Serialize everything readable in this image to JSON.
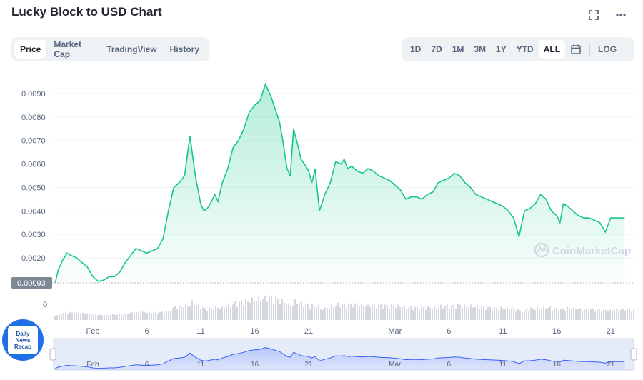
{
  "header": {
    "title": "Lucky Block to USD Chart",
    "fullscreen_icon": "fullscreen-icon",
    "more_icon": "more-horizontal-icon"
  },
  "tabs": [
    {
      "label": "Price",
      "active": true
    },
    {
      "label": "Market Cap",
      "active": false
    },
    {
      "label": "TradingView",
      "active": false
    },
    {
      "label": "History",
      "active": false
    }
  ],
  "ranges": [
    {
      "label": "1D",
      "active": false
    },
    {
      "label": "7D",
      "active": false
    },
    {
      "label": "1M",
      "active": false
    },
    {
      "label": "3M",
      "active": false
    },
    {
      "label": "1Y",
      "active": false
    },
    {
      "label": "YTD",
      "active": false
    },
    {
      "label": "ALL",
      "active": true
    }
  ],
  "calendar_icon": "calendar-icon",
  "log_label": "LOG",
  "watermark": "CoinMarketCap",
  "badge": {
    "line1": "Daily",
    "line2": "News",
    "line3": "Recap"
  },
  "colors": {
    "line": "#16c784",
    "navigator": "#3861fb",
    "volume": "#c9cdd4"
  },
  "chart_data": {
    "type": "area",
    "y_ticks": [
      "0.0090",
      "0.0080",
      "0.0070",
      "0.0060",
      "0.0050",
      "0.0040",
      "0.0030",
      "0.0020"
    ],
    "ylim": [
      0.00093,
      0.0096
    ],
    "current_value_label": "0.00093",
    "volume_tick_label": "0",
    "x_tick_labels": [
      "Feb",
      "6",
      "11",
      "16",
      "21",
      "Mar",
      "6",
      "11",
      "16",
      "21"
    ],
    "x_tick_days": [
      0,
      5,
      10,
      15,
      20,
      28,
      33,
      38,
      43,
      48
    ],
    "grid": true,
    "series": [
      {
        "x_days": [
          -3.5,
          -3.2,
          -2.8,
          -2.4,
          -2.0,
          -1.5,
          -1.0,
          -0.5,
          0.0,
          0.5,
          1.0,
          1.5,
          2.0,
          2.5,
          3.0,
          3.5,
          4.0,
          4.5,
          5.0,
          5.5,
          6.0,
          6.5,
          7.0,
          7.5,
          8.0,
          8.5,
          9.0,
          9.5,
          10.0,
          10.3,
          10.6,
          11.0,
          11.3,
          11.6,
          12.0,
          12.5,
          13.0,
          13.5,
          14.0,
          14.5,
          15.0,
          15.5,
          16.0,
          16.5,
          17.0,
          17.3,
          17.6,
          18.0,
          18.3,
          18.6,
          19.0,
          19.3,
          19.6,
          20.0,
          20.3,
          20.6,
          21.0,
          21.5,
          22.0,
          22.5,
          23.0,
          23.3,
          23.6,
          24.0,
          24.5,
          25.0,
          25.5,
          26.0,
          26.5,
          27.0,
          27.5,
          28.0,
          28.5,
          29.0,
          29.5,
          30.0,
          30.5,
          31.0,
          31.5,
          32.0,
          32.5,
          33.0,
          33.5,
          34.0,
          34.5,
          35.0,
          35.5,
          36.0,
          36.5,
          37.0,
          37.5,
          38.0,
          38.5,
          39.0,
          39.5,
          40.0,
          40.5,
          41.0,
          41.5,
          42.0,
          42.5,
          43.0,
          43.3,
          43.6,
          44.0,
          44.5,
          45.0,
          45.5,
          46.0,
          46.5,
          47.0,
          47.5,
          48.0,
          48.5,
          49.0,
          49.3
        ],
        "values": [
          0.00093,
          0.0015,
          0.0019,
          0.0022,
          0.0021,
          0.002,
          0.0018,
          0.0016,
          0.0012,
          0.001,
          0.00105,
          0.0012,
          0.0012,
          0.0014,
          0.0018,
          0.0021,
          0.0024,
          0.0023,
          0.0022,
          0.0023,
          0.0024,
          0.0028,
          0.004,
          0.005,
          0.0052,
          0.0055,
          0.0072,
          0.0055,
          0.0043,
          0.004,
          0.0041,
          0.0044,
          0.0047,
          0.0044,
          0.0052,
          0.0058,
          0.0067,
          0.007,
          0.0075,
          0.0082,
          0.0085,
          0.0087,
          0.0094,
          0.0089,
          0.0082,
          0.0078,
          0.007,
          0.0058,
          0.0055,
          0.0075,
          0.0068,
          0.0062,
          0.006,
          0.0057,
          0.0052,
          0.0058,
          0.004,
          0.0047,
          0.0052,
          0.0061,
          0.006,
          0.0062,
          0.0058,
          0.0059,
          0.0057,
          0.0056,
          0.0058,
          0.0057,
          0.0055,
          0.0054,
          0.0053,
          0.0051,
          0.0049,
          0.0045,
          0.0046,
          0.0046,
          0.0045,
          0.0047,
          0.0048,
          0.0052,
          0.0053,
          0.0054,
          0.0056,
          0.0055,
          0.0052,
          0.005,
          0.0047,
          0.0046,
          0.0045,
          0.0044,
          0.0043,
          0.0042,
          0.004,
          0.0037,
          0.0029,
          0.004,
          0.0041,
          0.0043,
          0.0047,
          0.0045,
          0.004,
          0.0038,
          0.0035,
          0.0043,
          0.0042,
          0.004,
          0.0038,
          0.0037,
          0.0037,
          0.0036,
          0.0035,
          0.0031,
          0.0037,
          0.0037,
          0.0037,
          0.0037
        ]
      }
    ]
  }
}
